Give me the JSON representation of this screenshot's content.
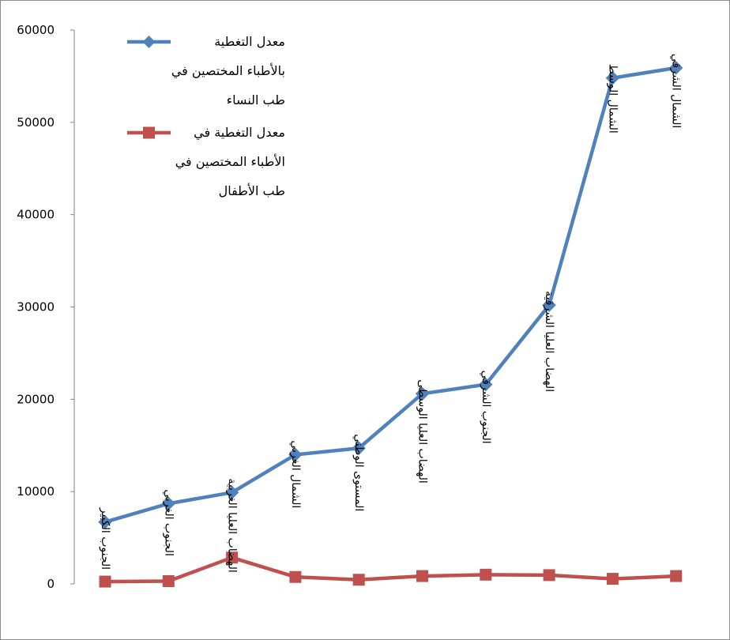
{
  "chart_data": {
    "type": "line",
    "categories": [
      "الجنوب الكبير",
      "الجنوب الغربي",
      "الهضاب العليا الغربية",
      "الشمال الغربي",
      "المستوى الوطني",
      "الهضاب العليا الوسطى",
      "الجنوب الشرقي",
      "الهضاب العليا الشرقية",
      "الشمال الوسط",
      "الشمال الشرقي"
    ],
    "highlight_category": "المستوى الوطني",
    "highlight_color": "#ff0000",
    "series": [
      {
        "name": "معدل التغطية بالأطباء المختصين في طب النساء",
        "legend_lines": [
          "معدل التغطية",
          "بالأطباء المختصين في",
          "طب النساء"
        ],
        "color": "#4f81bd",
        "marker": "diamond",
        "values": [
          6700,
          8700,
          9900,
          14000,
          14700,
          20600,
          21600,
          30200,
          54800,
          55900
        ]
      },
      {
        "name": "معدل التغطية في الأطباء المختصين في طب الأطفال",
        "legend_lines": [
          "معدل التغطية في",
          "الأطباء المختصين في",
          "طب الأطفال"
        ],
        "color": "#c0504d",
        "marker": "square",
        "values": [
          250,
          300,
          2850,
          750,
          450,
          850,
          1000,
          950,
          550,
          850
        ]
      }
    ],
    "ylim": [
      0,
      60000
    ],
    "yticks": [
      0,
      10000,
      20000,
      30000,
      40000,
      50000,
      60000
    ],
    "grid": false,
    "legend_position": "top-left",
    "title": "",
    "xlabel": "",
    "ylabel": ""
  }
}
